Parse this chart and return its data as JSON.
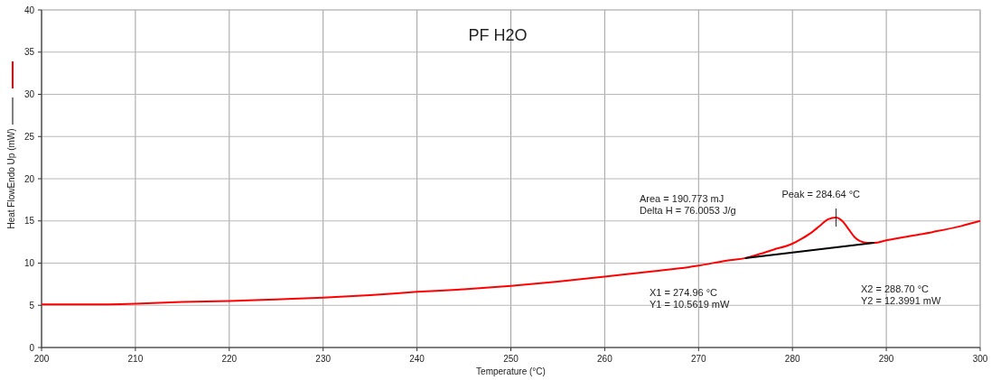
{
  "chart_data": {
    "type": "line",
    "title": "PF H2O",
    "xlabel": "Temperature (°C)",
    "ylabel": "Heat FlowEndo Up (mW)",
    "xlim": [
      200,
      300
    ],
    "xticks": [
      200,
      210,
      220,
      230,
      240,
      250,
      260,
      270,
      280,
      290,
      300
    ],
    "ylim": [
      0,
      40
    ],
    "yticks": [
      0,
      5,
      10,
      15,
      20,
      25,
      30,
      35,
      40
    ],
    "grid": true,
    "series": [
      {
        "color": "#ff0000",
        "x": [
          200,
          205,
          210,
          215,
          220,
          225,
          230,
          235,
          240,
          245,
          250,
          255,
          260,
          265,
          270,
          273,
          275,
          276,
          278,
          280,
          281,
          282,
          283,
          283.8,
          284.64,
          285.3,
          286,
          286.6,
          287.2,
          288,
          288.7,
          290,
          292,
          295,
          298,
          300
        ],
        "values": [
          5.1,
          5.1,
          5.2,
          5.4,
          5.5,
          5.7,
          5.9,
          6.2,
          6.6,
          6.9,
          7.3,
          7.8,
          8.4,
          9.0,
          9.7,
          10.3,
          10.6,
          10.9,
          11.6,
          12.3,
          12.9,
          13.6,
          14.5,
          15.2,
          15.4,
          15.0,
          14.0,
          13.1,
          12.6,
          12.4,
          12.4,
          12.7,
          13.1,
          13.7,
          14.4,
          15.0
        ]
      },
      {
        "color": "#000000",
        "x": [
          274.96,
          288.7
        ],
        "values": [
          10.6,
          12.4
        ]
      }
    ],
    "annotations": [
      "Area = 190.773 mJ\nDelta H = 76.0053 J/g",
      {
        "text": "Peak = 284.64 °C",
        "x": 284.64,
        "y": 15.4
      },
      "X1 = 274.96 °C\nY1 = 10.5619 mW",
      "X2 = 288.70 °C\nY2 = 12.3991 mW"
    ]
  }
}
